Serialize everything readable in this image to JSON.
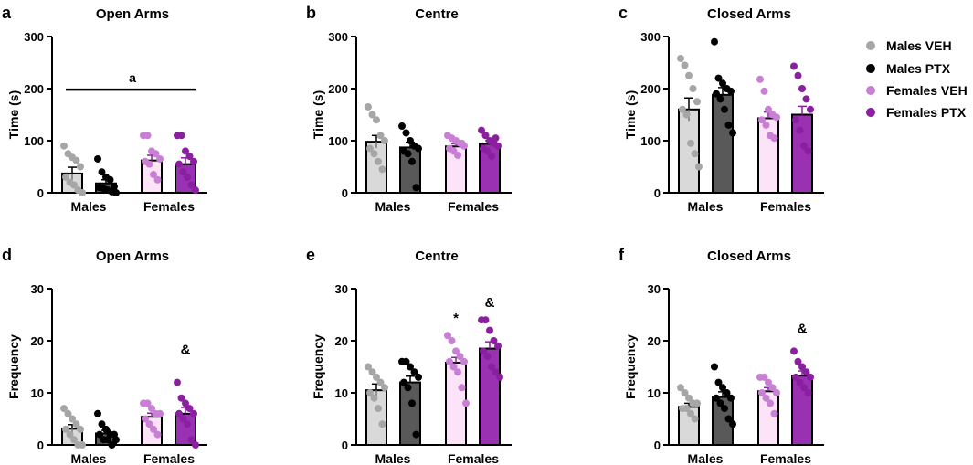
{
  "colors": {
    "males_veh_bar": "#d9d9d9",
    "males_veh_dot": "#a6a6a6",
    "males_ptx_bar": "#595959",
    "males_ptx_dot": "#000000",
    "females_veh_bar": "#fde3f7",
    "females_veh_dot": "#c97fd4",
    "females_ptx_bar": "#9a31b3",
    "females_ptx_dot": "#8a1fa0"
  },
  "legend": {
    "males_veh": "Males VEH",
    "males_ptx": "Males PTX",
    "females_veh": "Females VEH",
    "females_ptx": "Females PTX"
  },
  "chart_data": [
    {
      "type": "bar",
      "panel_letter": "a",
      "title": "Open Arms",
      "ylabel": "Time (s)",
      "ylim": [
        0,
        300
      ],
      "yticks": [
        0,
        100,
        200,
        300
      ],
      "categories": [
        "Males",
        "Females"
      ],
      "series": [
        {
          "name": "Males VEH",
          "values": [
            37,
            null
          ],
          "sem": [
            12,
            null
          ],
          "points": [
            90,
            75,
            68,
            62,
            50,
            30,
            20,
            15,
            5,
            0
          ]
        },
        {
          "name": "Males PTX",
          "values": [
            18,
            null
          ],
          "sem": [
            7,
            null
          ],
          "points": [
            65,
            40,
            30,
            25,
            12,
            10,
            8,
            5,
            2,
            0
          ]
        },
        {
          "name": "Females VEH",
          "values": [
            null,
            62
          ],
          "sem": [
            null,
            10
          ],
          "points": [
            110,
            110,
            80,
            75,
            65,
            60,
            55,
            35,
            25
          ]
        },
        {
          "name": "Females PTX",
          "values": [
            null,
            55
          ],
          "sem": [
            null,
            12
          ],
          "points": [
            110,
            110,
            80,
            70,
            60,
            55,
            40,
            30,
            15,
            5
          ]
        }
      ],
      "annotations": [
        {
          "text": "a",
          "type": "line",
          "y": 198
        }
      ]
    },
    {
      "type": "bar",
      "panel_letter": "b",
      "title": "Centre",
      "ylabel": "Time (s)",
      "ylim": [
        0,
        300
      ],
      "yticks": [
        0,
        100,
        200,
        300
      ],
      "categories": [
        "Males",
        "Females"
      ],
      "series": [
        {
          "name": "Males VEH",
          "values": [
            98,
            null
          ],
          "sem": [
            12,
            null
          ],
          "points": [
            165,
            150,
            140,
            110,
            100,
            85,
            75,
            60,
            45
          ]
        },
        {
          "name": "Males PTX",
          "values": [
            87,
            null
          ],
          "sem": [
            10,
            null
          ],
          "points": [
            128,
            115,
            100,
            90,
            85,
            80,
            75,
            60,
            10
          ]
        },
        {
          "name": "Females VEH",
          "values": [
            null,
            89
          ],
          "sem": [
            null,
            5
          ],
          "points": [
            110,
            105,
            100,
            95,
            90,
            85,
            80,
            72,
            95
          ]
        },
        {
          "name": "Females PTX",
          "values": [
            null,
            94
          ],
          "sem": [
            null,
            6
          ],
          "points": [
            120,
            110,
            100,
            95,
            90,
            85,
            80,
            70,
            105
          ]
        }
      ],
      "annotations": []
    },
    {
      "type": "bar",
      "panel_letter": "c",
      "title": "Closed Arms",
      "ylabel": "Time (s)",
      "ylim": [
        0,
        300
      ],
      "yticks": [
        0,
        100,
        200,
        300
      ],
      "categories": [
        "Males",
        "Females"
      ],
      "series": [
        {
          "name": "Males VEH",
          "values": [
            160,
            null
          ],
          "sem": [
            22,
            null
          ],
          "points": [
            258,
            245,
            225,
            200,
            175,
            160,
            150,
            95,
            75,
            50
          ]
        },
        {
          "name": "Males PTX",
          "values": [
            188,
            null
          ],
          "sem": [
            14,
            null
          ],
          "points": [
            290,
            220,
            210,
            200,
            195,
            190,
            180,
            160,
            130,
            115
          ]
        },
        {
          "name": "Females VEH",
          "values": [
            null,
            143
          ],
          "sem": [
            null,
            12
          ],
          "points": [
            218,
            195,
            160,
            150,
            145,
            140,
            130,
            110,
            105
          ]
        },
        {
          "name": "Females PTX",
          "values": [
            null,
            150
          ],
          "sem": [
            null,
            16
          ],
          "points": [
            243,
            225,
            200,
            180,
            160,
            140,
            120,
            90,
            80
          ]
        }
      ],
      "annotations": []
    },
    {
      "type": "bar",
      "panel_letter": "d",
      "title": "Open Arms",
      "ylabel": "Frequency",
      "ylim": [
        0,
        30
      ],
      "yticks": [
        0,
        10,
        20,
        30
      ],
      "categories": [
        "Males",
        "Females"
      ],
      "series": [
        {
          "name": "Males VEH",
          "values": [
            3.1,
            null
          ],
          "sem": [
            0.8,
            null
          ],
          "points": [
            7,
            6,
            5,
            4,
            3,
            3,
            2,
            1,
            0,
            0
          ]
        },
        {
          "name": "Males PTX",
          "values": [
            2.2,
            null
          ],
          "sem": [
            0.6,
            null
          ],
          "points": [
            6,
            4,
            3,
            2,
            2,
            2,
            1,
            1,
            0,
            1
          ]
        },
        {
          "name": "Females VEH",
          "values": [
            null,
            5.4
          ],
          "sem": [
            null,
            0.7
          ],
          "points": [
            8,
            8,
            7,
            6,
            6,
            5,
            4,
            3,
            2
          ]
        },
        {
          "name": "Females PTX",
          "values": [
            null,
            6.0
          ],
          "sem": [
            null,
            1.2
          ],
          "points": [
            12,
            9,
            8,
            7,
            6,
            6,
            5,
            4,
            1,
            0
          ]
        }
      ],
      "annotations": [
        {
          "text": "&",
          "series": "Females PTX",
          "y": 17.5
        }
      ]
    },
    {
      "type": "bar",
      "panel_letter": "e",
      "title": "Centre",
      "ylabel": "Frequency",
      "ylim": [
        0,
        30
      ],
      "yticks": [
        0,
        10,
        20,
        30
      ],
      "categories": [
        "Males",
        "Females"
      ],
      "series": [
        {
          "name": "Males VEH",
          "values": [
            10.5,
            null
          ],
          "sem": [
            1.2,
            null
          ],
          "points": [
            15,
            14,
            13,
            12,
            11,
            10,
            9,
            7,
            4
          ]
        },
        {
          "name": "Males PTX",
          "values": [
            12.0,
            null
          ],
          "sem": [
            1.2,
            null
          ],
          "points": [
            16,
            16,
            15,
            14,
            13,
            12,
            11,
            8,
            2
          ]
        },
        {
          "name": "Females VEH",
          "values": [
            null,
            15.8
          ],
          "sem": [
            null,
            1.0
          ],
          "points": [
            21,
            20,
            18,
            17,
            16,
            16,
            15,
            14,
            11,
            8
          ]
        },
        {
          "name": "Females PTX",
          "values": [
            null,
            18.5
          ],
          "sem": [
            null,
            1.3
          ],
          "points": [
            24,
            24,
            22,
            20,
            19,
            18,
            17,
            15,
            14,
            13
          ]
        }
      ],
      "annotations": [
        {
          "text": "*",
          "series": "Females VEH",
          "y": 23.5
        },
        {
          "text": "&",
          "series": "Females PTX",
          "y": 26.5
        }
      ]
    },
    {
      "type": "bar",
      "panel_letter": "f",
      "title": "Closed Arms",
      "ylabel": "Frequency",
      "ylim": [
        0,
        30
      ],
      "yticks": [
        0,
        10,
        20,
        30
      ],
      "categories": [
        "Males",
        "Females"
      ],
      "series": [
        {
          "name": "Males VEH",
          "values": [
            7.3,
            null
          ],
          "sem": [
            0.7,
            null
          ],
          "points": [
            11,
            10,
            9,
            8,
            8,
            7,
            7,
            6,
            5
          ]
        },
        {
          "name": "Males PTX",
          "values": [
            9.2,
            null
          ],
          "sem": [
            1.0,
            null
          ],
          "points": [
            15,
            12,
            11,
            10,
            9,
            9,
            8,
            7,
            5,
            4
          ]
        },
        {
          "name": "Females VEH",
          "values": [
            null,
            10.3
          ],
          "sem": [
            null,
            0.7
          ],
          "points": [
            13,
            13,
            12,
            11,
            10,
            10,
            9,
            8,
            6
          ]
        },
        {
          "name": "Females PTX",
          "values": [
            null,
            13.3
          ],
          "sem": [
            null,
            0.9
          ],
          "points": [
            18,
            16,
            15,
            14,
            13,
            13,
            12,
            11,
            10
          ]
        }
      ],
      "annotations": [
        {
          "text": "&",
          "series": "Females PTX",
          "y": 21.5
        }
      ]
    }
  ]
}
